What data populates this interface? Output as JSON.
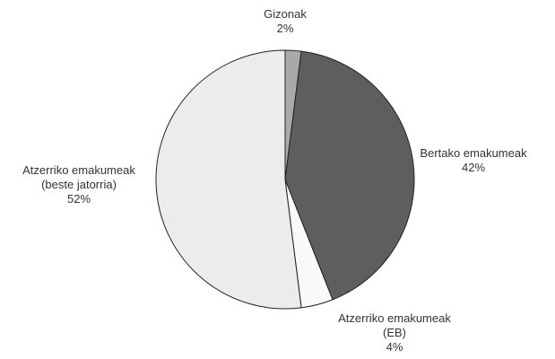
{
  "chart_data": {
    "type": "pie",
    "categories": [
      "Gizonak",
      "Bertako emakumeak",
      "Atzerriko emakumeak (EB)",
      "Atzerriko emakumeak (beste jatorria)"
    ],
    "values": [
      2,
      42,
      4,
      52
    ],
    "value_labels": [
      "2%",
      "42%",
      "4%",
      "52%"
    ],
    "colors": [
      "#a9a9a9",
      "#5e5e5e",
      "#f9f9f9",
      "#ececec"
    ]
  }
}
